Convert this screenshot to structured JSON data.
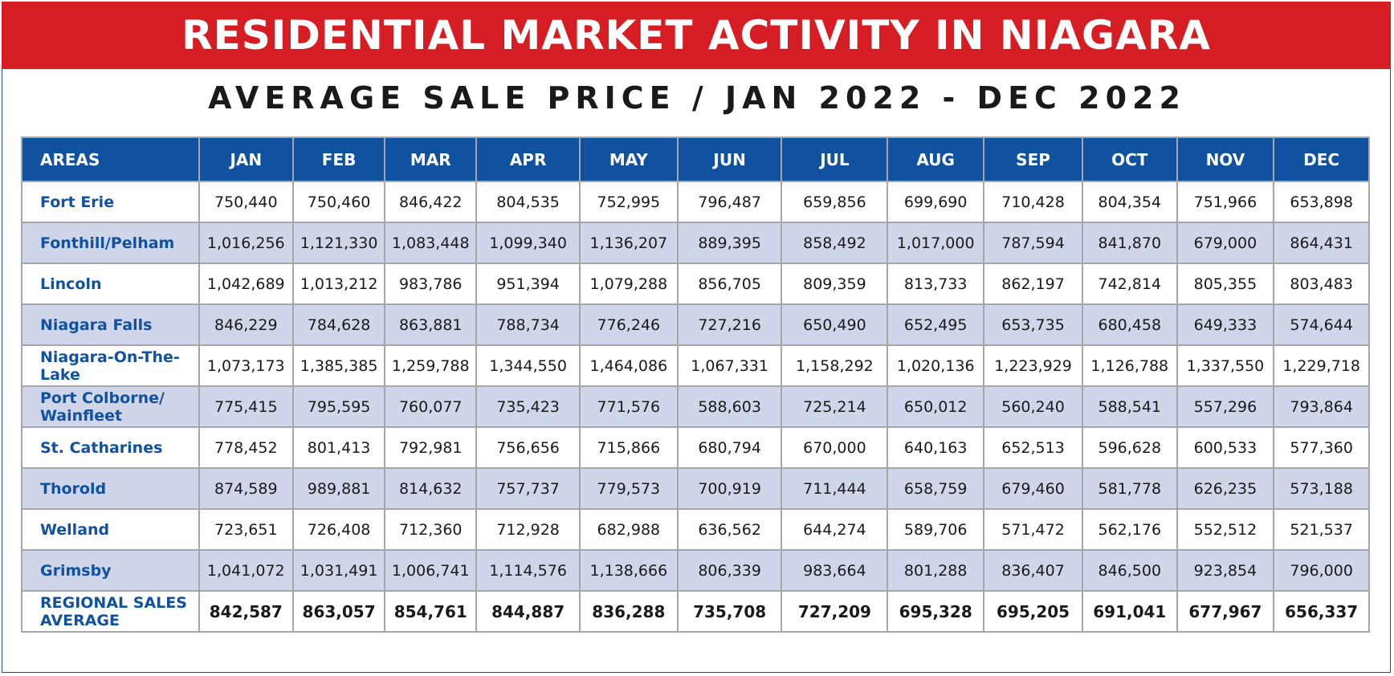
{
  "banner": {
    "title": "RESIDENTIAL MARKET ACTIVITY IN NIAGARA"
  },
  "subtitle": "AVERAGE SALE PRICE / JAN 2022 - DEC 2022",
  "table": {
    "headers": [
      "AREAS",
      "JAN",
      "FEB",
      "MAR",
      "APR",
      "MAY",
      "JUN",
      "JUL",
      "AUG",
      "SEP",
      "OCT",
      "NOV",
      "DEC"
    ],
    "rows": [
      {
        "area": "Fort Erie",
        "values": [
          "750,440",
          "750,460",
          "846,422",
          "804,535",
          "752,995",
          "796,487",
          "659,856",
          "699,690",
          "710,428",
          "804,354",
          "751,966",
          "653,898"
        ]
      },
      {
        "area": "Fonthill/Pelham",
        "values": [
          "1,016,256",
          "1,121,330",
          "1,083,448",
          "1,099,340",
          "1,136,207",
          "889,395",
          "858,492",
          "1,017,000",
          "787,594",
          "841,870",
          "679,000",
          "864,431"
        ]
      },
      {
        "area": "Lincoln",
        "values": [
          "1,042,689",
          "1,013,212",
          "983,786",
          "951,394",
          "1,079,288",
          "856,705",
          "809,359",
          "813,733",
          "862,197",
          "742,814",
          "805,355",
          "803,483"
        ]
      },
      {
        "area": "Niagara Falls",
        "values": [
          "846,229",
          "784,628",
          "863,881",
          "788,734",
          "776,246",
          "727,216",
          "650,490",
          "652,495",
          "653,735",
          "680,458",
          "649,333",
          "574,644"
        ]
      },
      {
        "area": "Niagara-On-The-Lake",
        "values": [
          "1,073,173",
          "1,385,385",
          "1,259,788",
          "1,344,550",
          "1,464,086",
          "1,067,331",
          "1,158,292",
          "1,020,136",
          "1,223,929",
          "1,126,788",
          "1,337,550",
          "1,229,718"
        ]
      },
      {
        "area": "Port Colborne/ Wainfleet",
        "values": [
          "775,415",
          "795,595",
          "760,077",
          "735,423",
          "771,576",
          "588,603",
          "725,214",
          "650,012",
          "560,240",
          "588,541",
          "557,296",
          "793,864"
        ]
      },
      {
        "area": "St. Catharines",
        "values": [
          "778,452",
          "801,413",
          "792,981",
          "756,656",
          "715,866",
          "680,794",
          "670,000",
          "640,163",
          "652,513",
          "596,628",
          "600,533",
          "577,360"
        ]
      },
      {
        "area": "Thorold",
        "values": [
          "874,589",
          "989,881",
          "814,632",
          "757,737",
          "779,573",
          "700,919",
          "711,444",
          "658,759",
          "679,460",
          "581,778",
          "626,235",
          "573,188"
        ]
      },
      {
        "area": "Welland",
        "values": [
          "723,651",
          "726,408",
          "712,360",
          "712,928",
          "682,988",
          "636,562",
          "644,274",
          "589,706",
          "571,472",
          "562,176",
          "552,512",
          "521,537"
        ]
      },
      {
        "area": "Grimsby",
        "values": [
          "1,041,072",
          "1,031,491",
          "1,006,741",
          "1,114,576",
          "1,138,666",
          "806,339",
          "983,664",
          "801,288",
          "836,407",
          "846,500",
          "923,854",
          "796,000"
        ]
      }
    ],
    "average": {
      "area": "REGIONAL SALES AVERAGE",
      "values": [
        "842,587",
        "863,057",
        "854,761",
        "844,887",
        "836,288",
        "735,708",
        "727,209",
        "695,328",
        "695,205",
        "691,041",
        "677,967",
        "656,337"
      ]
    }
  },
  "colors": {
    "banner": "#d51d23",
    "header": "#1152a0",
    "stripe": "#cfd6ea",
    "border": "#a6a6a6"
  }
}
